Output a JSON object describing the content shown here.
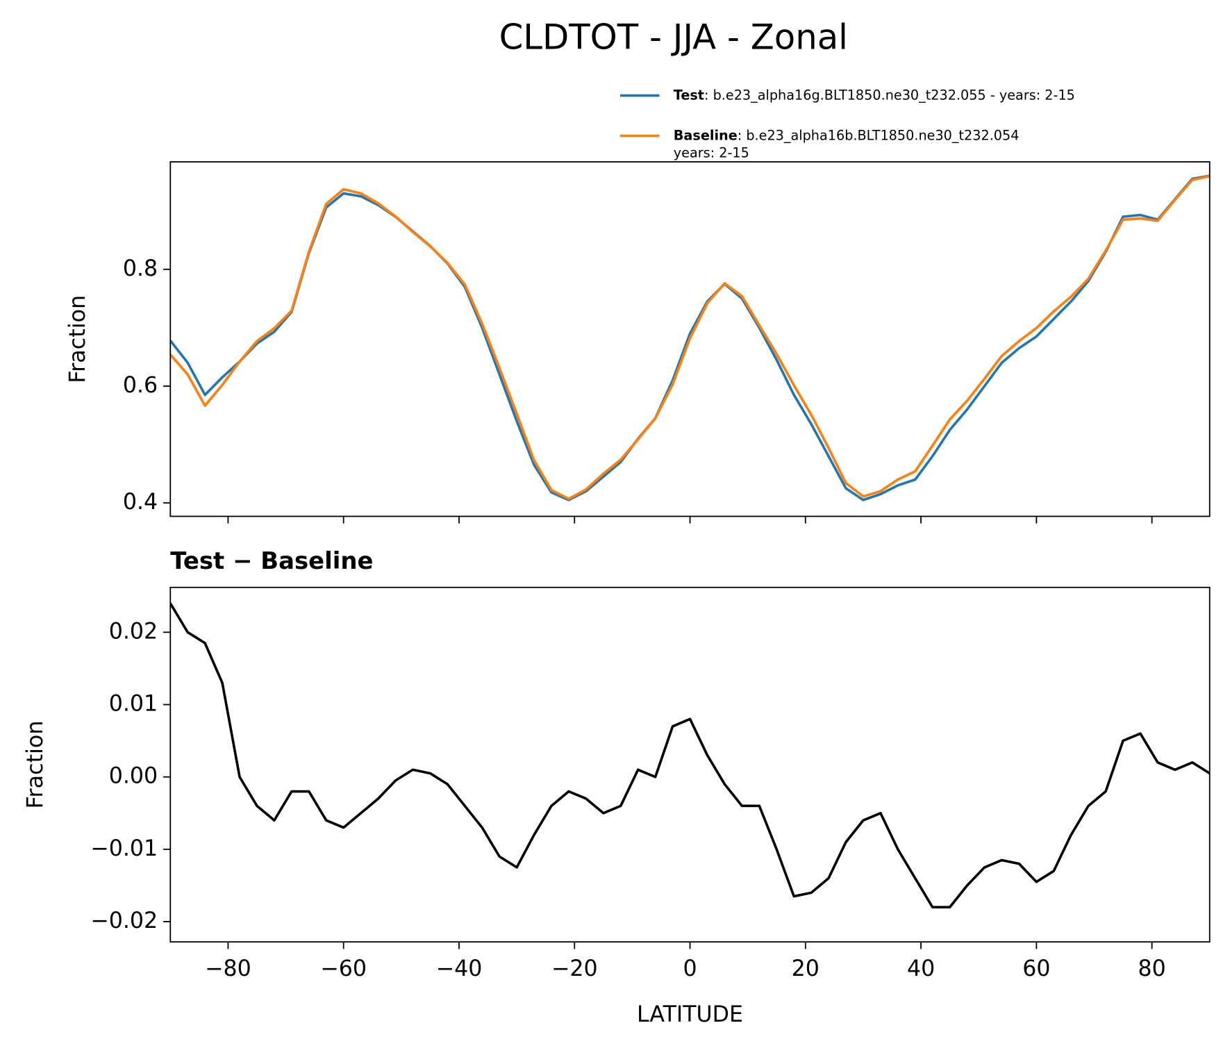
{
  "title": "CLDTOT - JJA - Zonal",
  "chart_data": [
    {
      "type": "line",
      "ylabel": "Fraction",
      "x": [
        -90,
        -87,
        -84,
        -81,
        -78,
        -75,
        -72,
        -69,
        -66,
        -63,
        -60,
        -57,
        -54,
        -51,
        -48,
        -45,
        -42,
        -39,
        -36,
        -33,
        -30,
        -27,
        -24,
        -21,
        -18,
        -15,
        -12,
        -9,
        -6,
        -3,
        0,
        3,
        6,
        9,
        12,
        15,
        18,
        21,
        24,
        27,
        30,
        33,
        36,
        39,
        42,
        45,
        48,
        51,
        54,
        57,
        60,
        63,
        66,
        69,
        72,
        75,
        78,
        81,
        84,
        87,
        90
      ],
      "series": [
        {
          "name": "Test",
          "description": [
            ": b.e23_alpha16g.BLT1850.ne30_t232.055 - years: 2-15"
          ],
          "color": "#1f77b4",
          "values": [
            0.678,
            0.64,
            0.585,
            0.615,
            0.642,
            0.673,
            0.693,
            0.727,
            0.828,
            0.906,
            0.93,
            0.925,
            0.91,
            0.89,
            0.865,
            0.84,
            0.81,
            0.77,
            0.7,
            0.62,
            0.54,
            0.465,
            0.418,
            0.405,
            0.42,
            0.445,
            0.47,
            0.51,
            0.545,
            0.61,
            0.69,
            0.745,
            0.775,
            0.75,
            0.7,
            0.645,
            0.585,
            0.535,
            0.48,
            0.425,
            0.405,
            0.415,
            0.43,
            0.44,
            0.48,
            0.525,
            0.56,
            0.6,
            0.64,
            0.665,
            0.685,
            0.715,
            0.745,
            0.78,
            0.83,
            0.89,
            0.893,
            0.885,
            0.92,
            0.955,
            0.96
          ]
        },
        {
          "name": "Baseline",
          "description": [
            ": b.e23_alpha16b.BLT1850.ne30_t232.054",
            "years: 2-15"
          ],
          "color": "#ff7f0e",
          "values": [
            0.654,
            0.62,
            0.5665,
            0.602,
            0.642,
            0.677,
            0.699,
            0.729,
            0.83,
            0.912,
            0.937,
            0.93,
            0.913,
            0.8905,
            0.864,
            0.8395,
            0.811,
            0.774,
            0.707,
            0.631,
            0.5525,
            0.473,
            0.422,
            0.407,
            0.423,
            0.45,
            0.474,
            0.509,
            0.545,
            0.603,
            0.682,
            0.742,
            0.776,
            0.754,
            0.704,
            0.655,
            0.6015,
            0.551,
            0.494,
            0.434,
            0.411,
            0.42,
            0.44,
            0.454,
            0.498,
            0.543,
            0.575,
            0.6125,
            0.6515,
            0.677,
            0.6995,
            0.728,
            0.753,
            0.784,
            0.832,
            0.885,
            0.887,
            0.883,
            0.919,
            0.953,
            0.9595
          ]
        }
      ],
      "xlim": [
        -90,
        90
      ],
      "xticks": [
        -80,
        -60,
        -40,
        -20,
        0,
        20,
        40,
        60,
        80
      ],
      "ylim": [
        0.377,
        0.984
      ],
      "yticks": [
        0.4,
        0.6,
        0.8
      ]
    },
    {
      "type": "line",
      "title": "Test − Baseline",
      "xlabel": "LATITUDE",
      "ylabel": "Fraction",
      "x": [
        -90,
        -87,
        -84,
        -81,
        -78,
        -75,
        -72,
        -69,
        -66,
        -63,
        -60,
        -57,
        -54,
        -51,
        -48,
        -45,
        -42,
        -39,
        -36,
        -33,
        -30,
        -27,
        -24,
        -21,
        -18,
        -15,
        -12,
        -9,
        -6,
        -3,
        0,
        3,
        6,
        9,
        12,
        15,
        18,
        21,
        24,
        27,
        30,
        33,
        36,
        39,
        42,
        45,
        48,
        51,
        54,
        57,
        60,
        63,
        66,
        69,
        72,
        75,
        78,
        81,
        84,
        87,
        90
      ],
      "color": "#000000",
      "values": [
        0.024,
        0.02,
        0.0185,
        0.013,
        0.0,
        -0.004,
        -0.006,
        -0.002,
        -0.002,
        -0.006,
        -0.007,
        -0.005,
        -0.003,
        -0.0005,
        0.001,
        0.0005,
        -0.001,
        -0.004,
        -0.007,
        -0.011,
        -0.0125,
        -0.008,
        -0.004,
        -0.002,
        -0.003,
        -0.005,
        -0.004,
        0.001,
        0.0,
        0.007,
        0.008,
        0.003,
        -0.001,
        -0.004,
        -0.004,
        -0.01,
        -0.0165,
        -0.016,
        -0.014,
        -0.009,
        -0.006,
        -0.005,
        -0.01,
        -0.014,
        -0.018,
        -0.018,
        -0.015,
        -0.0125,
        -0.0115,
        -0.012,
        -0.0145,
        -0.013,
        -0.008,
        -0.004,
        -0.002,
        0.005,
        0.006,
        0.002,
        0.001,
        0.002,
        0.0005
      ],
      "xlim": [
        -90,
        90
      ],
      "xticks": [
        {
          "value": -80,
          "label": "−80"
        },
        {
          "value": -60,
          "label": "−60"
        },
        {
          "value": -40,
          "label": "−40"
        },
        {
          "value": -20,
          "label": "−20"
        },
        0,
        20,
        40,
        60,
        80
      ],
      "ylim": [
        -0.0228,
        0.0262
      ],
      "yticks": [
        {
          "value": -0.02,
          "label": "−0.02"
        },
        {
          "value": -0.01,
          "label": "−0.01"
        },
        {
          "value": 0,
          "label": "0.00"
        },
        {
          "value": 0.01,
          "label": "0.01"
        },
        0.02
      ]
    }
  ]
}
